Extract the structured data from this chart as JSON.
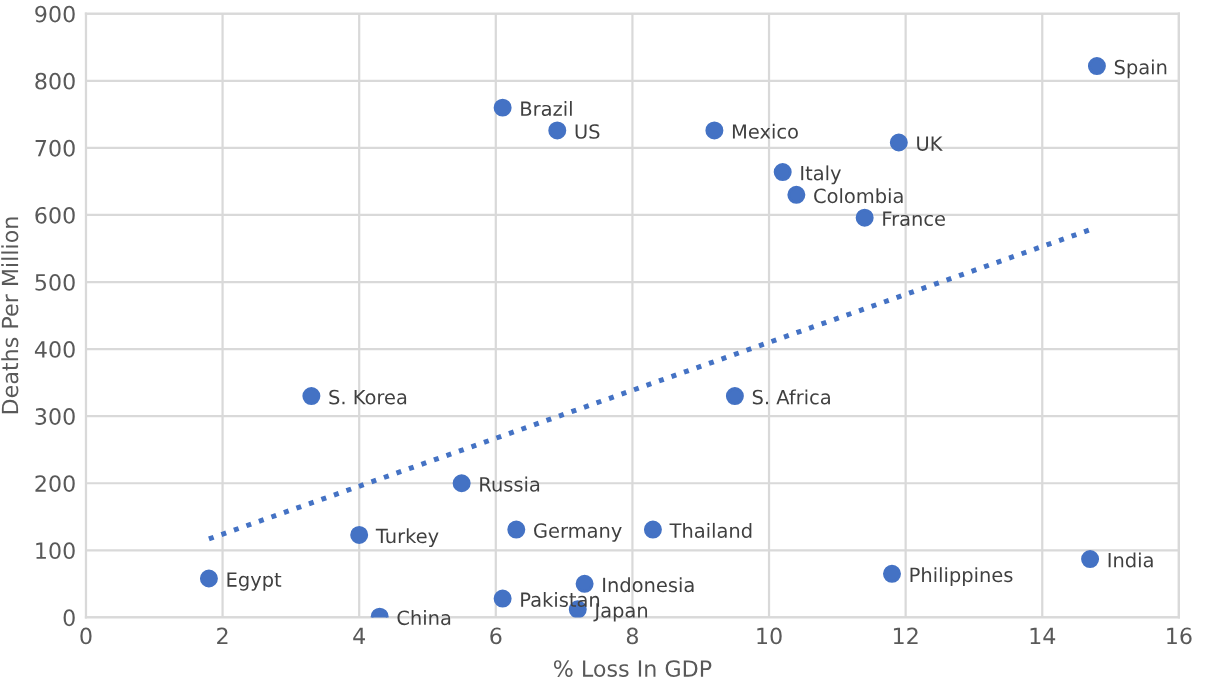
{
  "chart_data": {
    "type": "scatter",
    "xlabel": "% Loss In GDP",
    "ylabel": "Deaths Per Million",
    "xlim": [
      0,
      16
    ],
    "xticks": [
      0,
      2,
      4,
      6,
      8,
      10,
      12,
      14,
      16
    ],
    "ylim": [
      0,
      900
    ],
    "yticks": [
      0,
      100,
      200,
      300,
      400,
      500,
      600,
      700,
      800,
      900
    ],
    "grid": true,
    "series": [
      {
        "color": "#4472c4",
        "marker": "circle",
        "x": [
          14.8,
          6.1,
          6.9,
          9.2,
          11.9,
          10.2,
          10.4,
          11.4,
          3.3,
          9.5,
          5.5,
          4.0,
          6.3,
          8.3,
          1.8,
          14.7,
          11.8,
          7.3,
          6.1,
          7.2,
          4.3
        ],
        "values": [
          822,
          760,
          726,
          726,
          708,
          664,
          630,
          596,
          330,
          330,
          200,
          123,
          131,
          131,
          58,
          87,
          65,
          50,
          28,
          12,
          1
        ]
      },
      {
        "type": "line",
        "color": "#4472c4",
        "line_style": "dotted",
        "x": [
          1.8,
          14.7
        ],
        "values": [
          117,
          578
        ]
      }
    ],
    "annotations": [
      {
        "text": "Spain",
        "x": 14.8,
        "y": 822
      },
      {
        "text": "Brazil",
        "x": 6.1,
        "y": 760
      },
      {
        "text": "US",
        "x": 6.9,
        "y": 726
      },
      {
        "text": "Mexico",
        "x": 9.2,
        "y": 726
      },
      {
        "text": "UK",
        "x": 11.9,
        "y": 708
      },
      {
        "text": "Italy",
        "x": 10.2,
        "y": 664
      },
      {
        "text": "Colombia",
        "x": 10.4,
        "y": 630
      },
      {
        "text": "France",
        "x": 11.4,
        "y": 596
      },
      {
        "text": "S. Korea",
        "x": 3.3,
        "y": 330
      },
      {
        "text": "S. Africa",
        "x": 9.5,
        "y": 330
      },
      {
        "text": "Russia",
        "x": 5.5,
        "y": 200
      },
      {
        "text": "Turkey",
        "x": 4.0,
        "y": 123
      },
      {
        "text": "Germany",
        "x": 6.3,
        "y": 131
      },
      {
        "text": "Thailand",
        "x": 8.3,
        "y": 131
      },
      {
        "text": "Egypt",
        "x": 1.8,
        "y": 58
      },
      {
        "text": "India",
        "x": 14.7,
        "y": 87
      },
      {
        "text": "Philippines",
        "x": 11.8,
        "y": 65
      },
      {
        "text": "Indonesia",
        "x": 7.3,
        "y": 50
      },
      {
        "text": "Pakistan",
        "x": 6.1,
        "y": 28
      },
      {
        "text": "Japan",
        "x": 7.2,
        "y": 12
      },
      {
        "text": "China",
        "x": 4.3,
        "y": 1
      }
    ]
  }
}
